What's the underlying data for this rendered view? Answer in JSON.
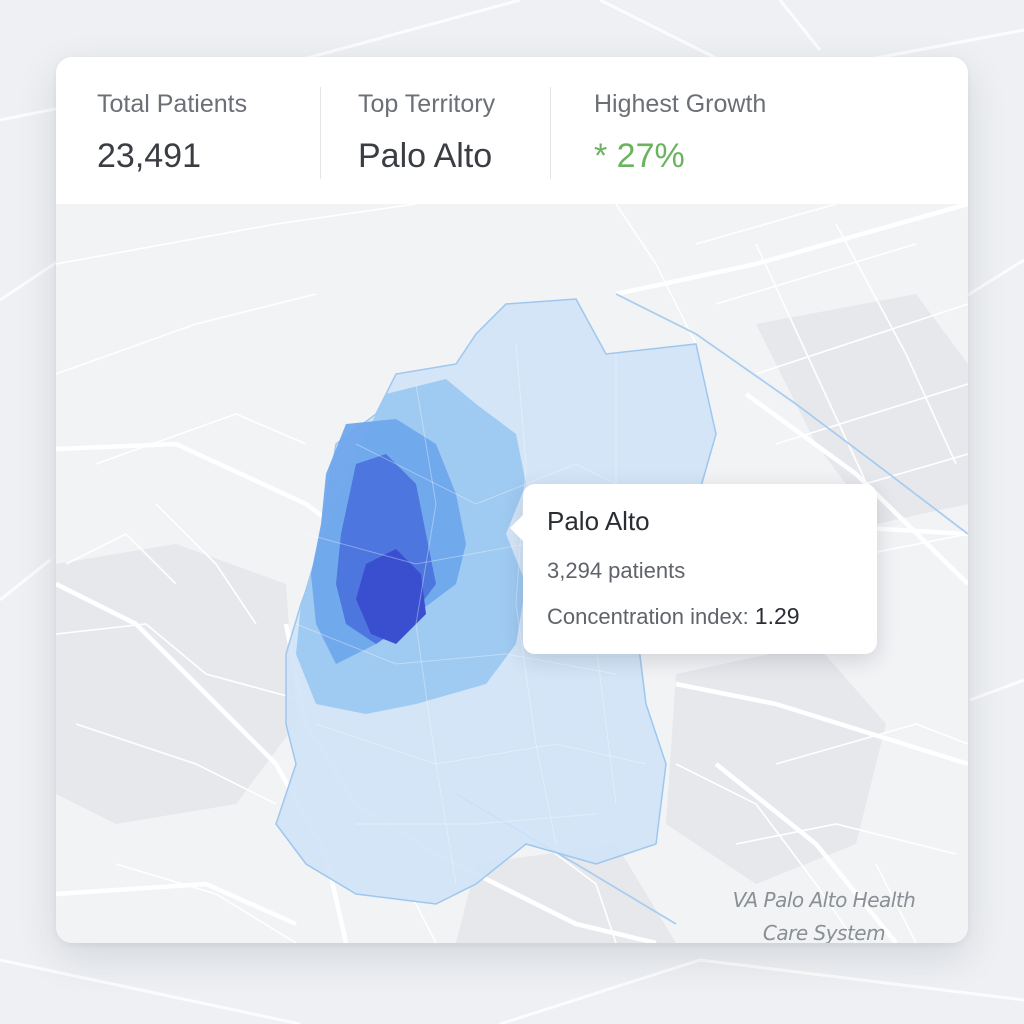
{
  "stats": {
    "total_patients": {
      "label": "Total Patients",
      "value": "23,491"
    },
    "top_territory": {
      "label": "Top Territory",
      "value": "Palo Alto"
    },
    "highest_growth": {
      "label": "Highest Growth",
      "value": "* 27%"
    }
  },
  "tooltip": {
    "title": "Palo Alto",
    "patients": "3,294 patients",
    "concentration_label": "Concentration index:",
    "concentration_value": "1.29"
  },
  "map_labels": {
    "poi_line1": "VA Palo Alto Health",
    "poi_line2": "Care System"
  },
  "colors": {
    "growth": "#6bb35e",
    "heat_low": "#d6e8f8",
    "heat_mid": "#7fb6ee",
    "heat_high": "#3a57d0"
  }
}
